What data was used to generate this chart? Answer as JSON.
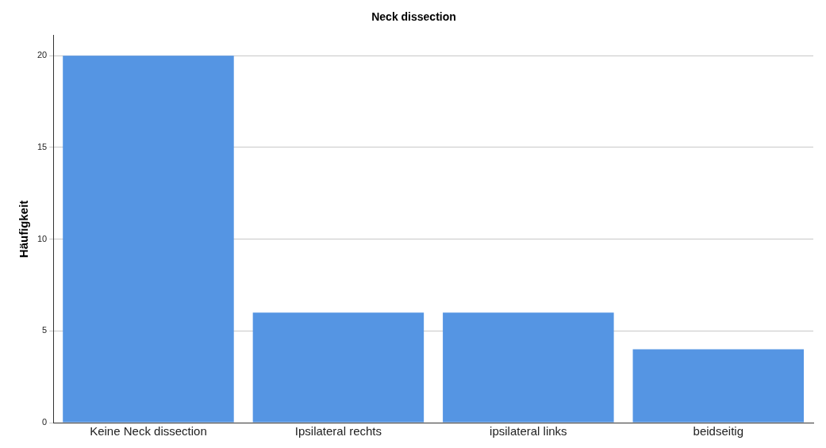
{
  "chart_data": {
    "type": "bar",
    "title": "Neck dissection",
    "ylabel": "Häufigkeit",
    "categories": [
      "Keine Neck dissection",
      "Ipsilateral rechts",
      "ipsilateral links",
      "beidseitig"
    ],
    "values": [
      20,
      6,
      6,
      4
    ],
    "color": "#5595e3",
    "ylim": [
      0,
      21.1
    ],
    "yticks": [
      0,
      5,
      10,
      15,
      20
    ],
    "grid": "y",
    "legend": false
  }
}
